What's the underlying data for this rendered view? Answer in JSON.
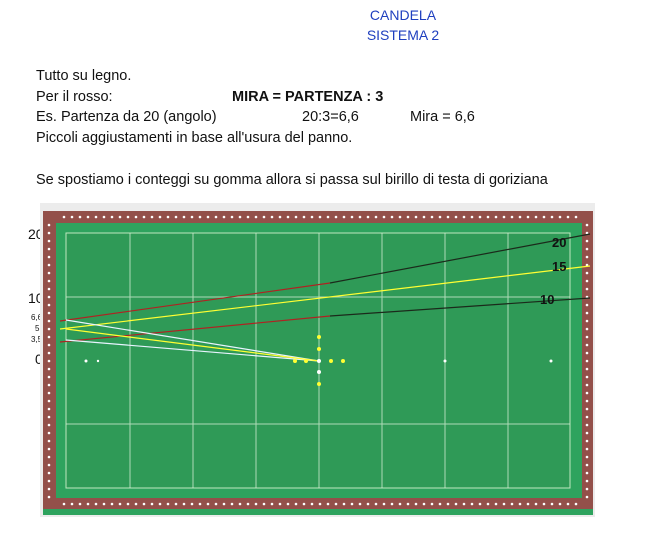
{
  "header": {
    "title_line1": "CANDELA",
    "title_line2": "SISTEMA 2"
  },
  "text": {
    "line1": "Tutto su legno.",
    "line2_label": "Per il rosso:",
    "line2_formula": "MIRA =  PARTENZA : 3",
    "line3_example": "Es.  Partenza   da 20 (angolo)",
    "line3_calc": "20:3=6,6",
    "line3_mira": "Mira = 6,6",
    "line4": "Piccoli aggiustamenti in base all'usura del panno.",
    "line5": "Se spostiamo i conteggi su gomma allora si passa sul birillo di testa di goriziana"
  },
  "diagram": {
    "left_scale": [
      "20",
      "10",
      "6,6",
      "5",
      "3,5",
      "0"
    ],
    "right_labels": [
      "20",
      "15",
      "10"
    ],
    "colors": {
      "rail": "#93504a",
      "cushion": "#2ea35e",
      "cloth": "#2f9a57",
      "diamond": "#ffffff",
      "line_dark": "#1b2a1b",
      "line_red": "#b02222",
      "line_yellow": "#ffff33",
      "line_white": "#e8f4ff",
      "pins": "#ffff33"
    }
  }
}
